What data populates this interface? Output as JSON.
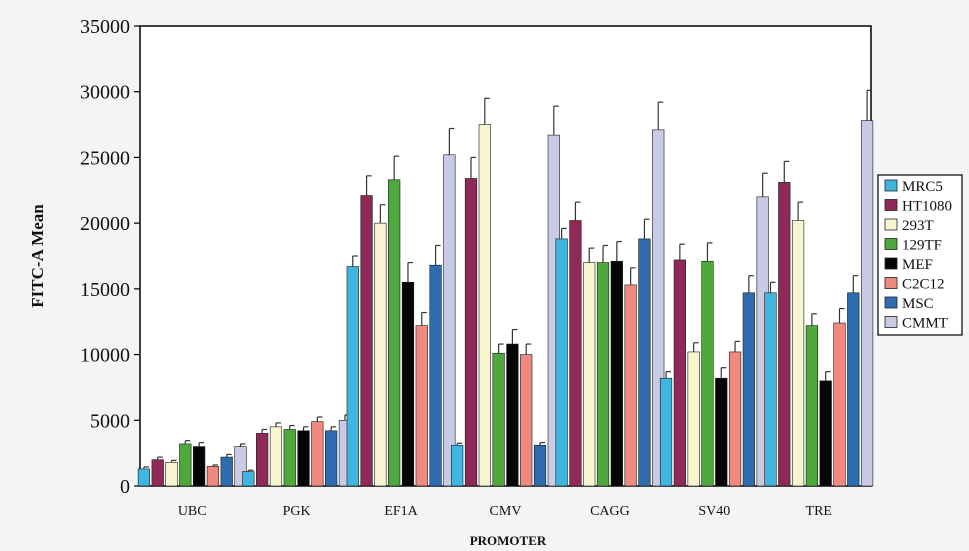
{
  "chart_data": {
    "type": "bar",
    "title": "",
    "xlabel": "PROMOTER",
    "ylabel": "FITC-A Mean",
    "ylim": [
      0,
      35000
    ],
    "yticks": [
      0,
      5000,
      10000,
      15000,
      20000,
      25000,
      30000,
      35000
    ],
    "grid": false,
    "legend_position": "right",
    "error_bars": true,
    "categories": [
      "UBC",
      "PGK",
      "EF1A",
      "CMV",
      "CAGG",
      "SV40",
      "TRE"
    ],
    "series": [
      {
        "name": "MRC5",
        "color": "#3fb6e0",
        "values": [
          1300,
          1100,
          16700,
          3100,
          18800,
          8200,
          14700
        ],
        "errors": [
          150,
          100,
          800,
          150,
          800,
          500,
          800
        ]
      },
      {
        "name": "HT1080",
        "color": "#8f2a58",
        "values": [
          2000,
          4000,
          22100,
          23400,
          20200,
          17200,
          23100
        ],
        "errors": [
          200,
          300,
          1500,
          1600,
          1400,
          1200,
          1600
        ]
      },
      {
        "name": "293T",
        "color": "#f7f5cf",
        "values": [
          1800,
          4500,
          20000,
          27500,
          17000,
          10200,
          20200
        ],
        "errors": [
          150,
          300,
          1400,
          2000,
          1100,
          700,
          1400
        ]
      },
      {
        "name": "129TF",
        "color": "#4ea83c",
        "values": [
          3200,
          4300,
          23300,
          10100,
          17000,
          17100,
          12200
        ],
        "errors": [
          250,
          300,
          1800,
          700,
          1300,
          1400,
          900
        ]
      },
      {
        "name": "MEF",
        "color": "#050505",
        "values": [
          3000,
          4200,
          15500,
          10800,
          17100,
          8200,
          8000
        ],
        "errors": [
          300,
          300,
          1500,
          1100,
          1500,
          800,
          700
        ]
      },
      {
        "name": "C2C12",
        "color": "#f08a80",
        "values": [
          1500,
          4900,
          12200,
          10000,
          15300,
          10200,
          12400
        ],
        "errors": [
          100,
          350,
          1000,
          800,
          1300,
          800,
          1100
        ]
      },
      {
        "name": "MSC",
        "color": "#2f6db0",
        "values": [
          2200,
          4200,
          16800,
          3100,
          18800,
          14700,
          14700
        ],
        "errors": [
          200,
          300,
          1500,
          200,
          1500,
          1300,
          1300
        ]
      },
      {
        "name": "CMMT",
        "color": "#c9cbe6",
        "values": [
          3000,
          5000,
          25200,
          26700,
          27100,
          22000,
          27800
        ],
        "errors": [
          200,
          400,
          2000,
          2200,
          2100,
          1800,
          2300
        ]
      }
    ]
  }
}
